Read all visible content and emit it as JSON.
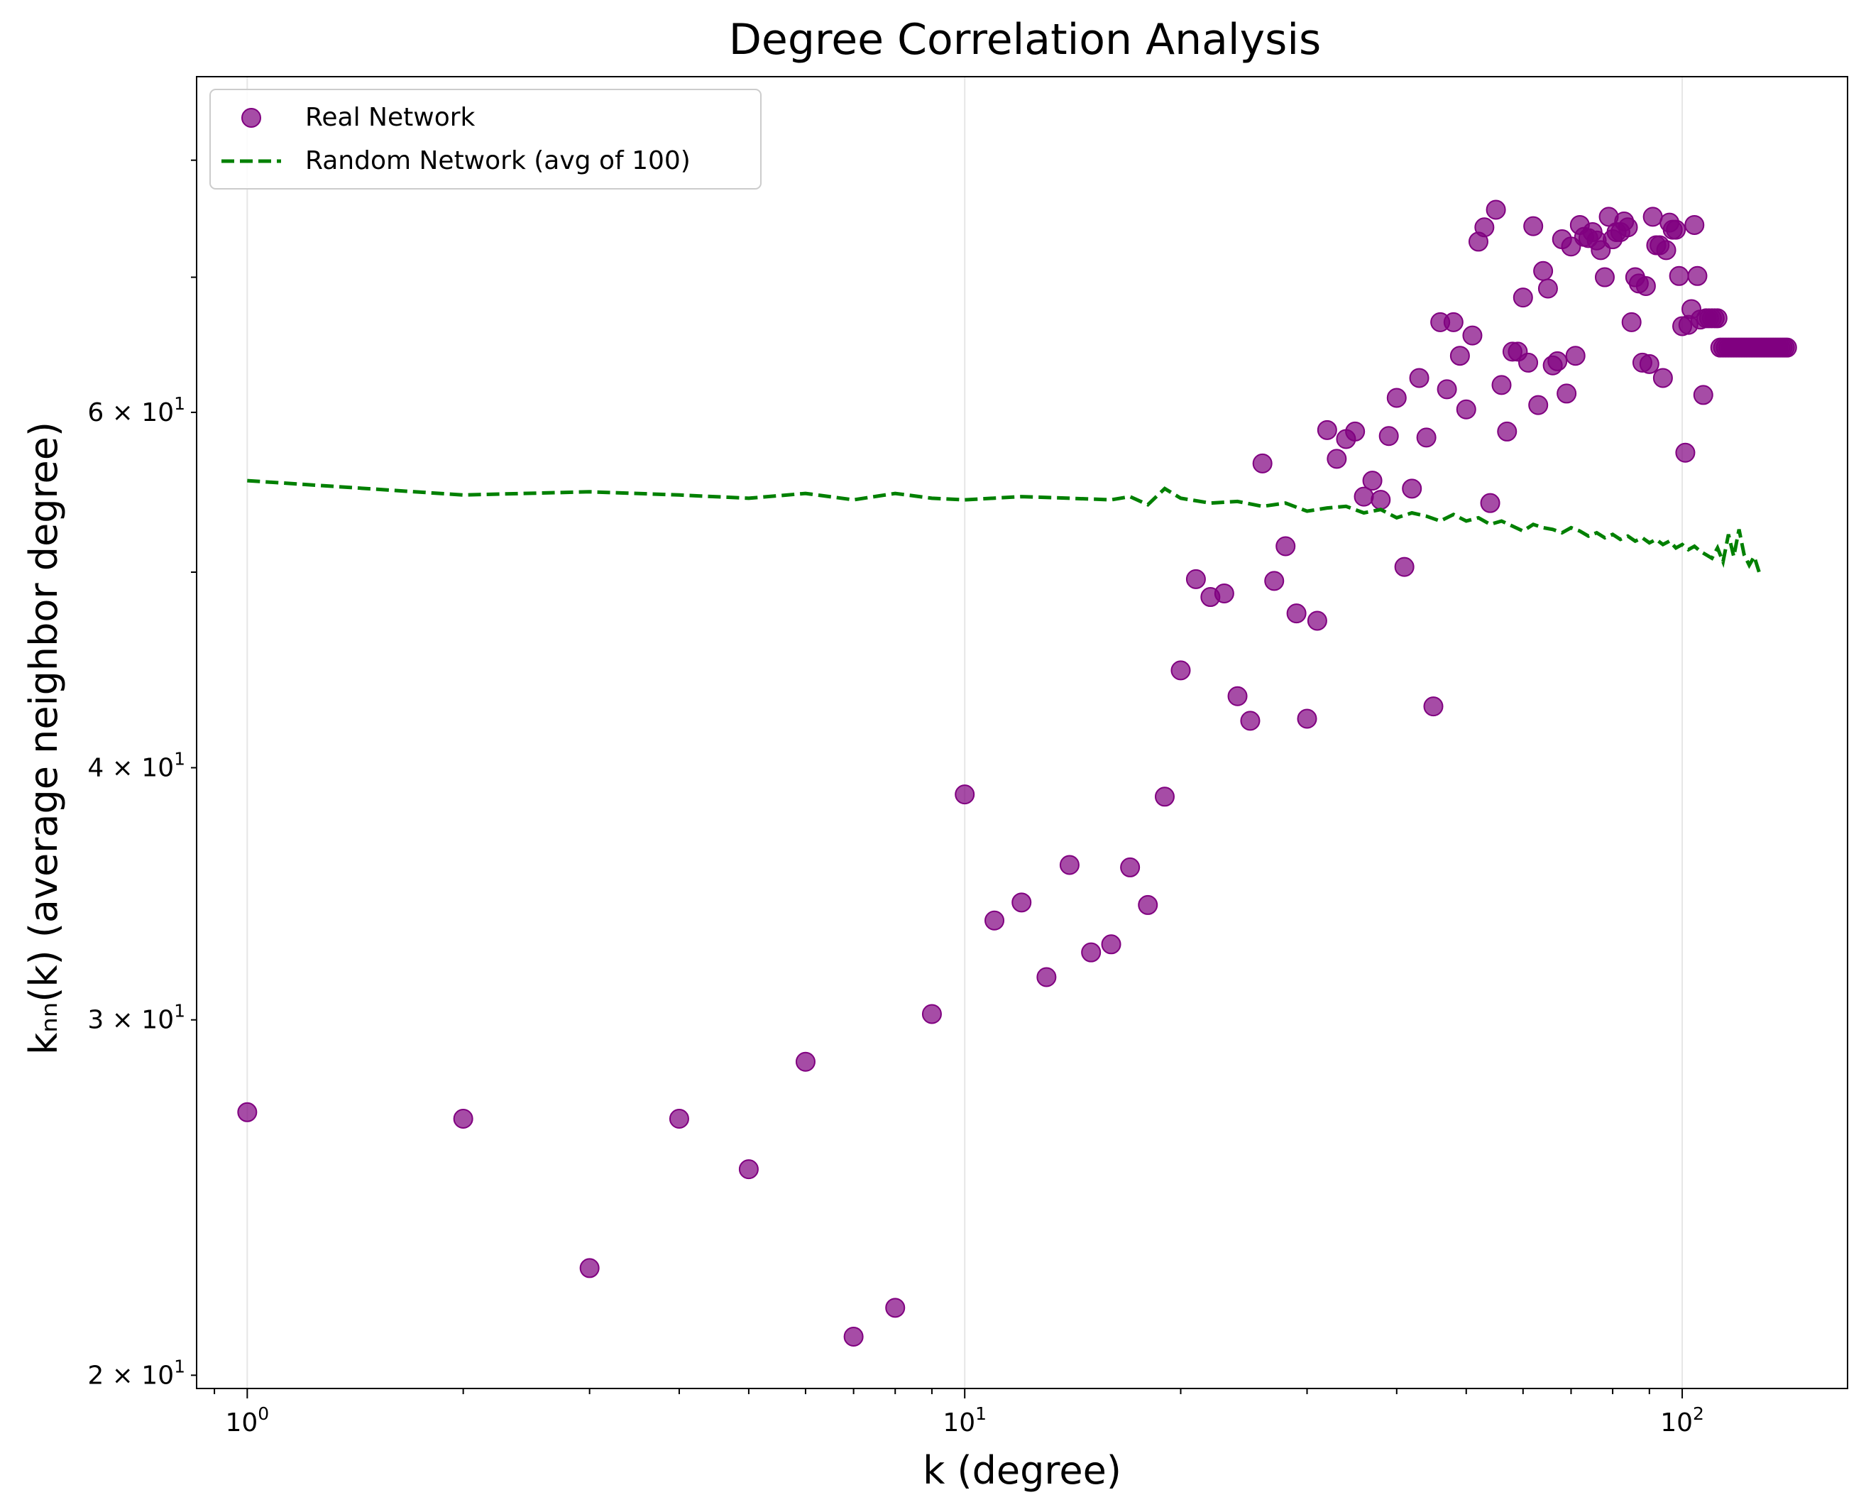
{
  "chart_data": {
    "type": "scatter",
    "title": "Degree Correlation Analysis",
    "xlabel": "k (degree)",
    "ylabel": "kₙₙ(k) (average neighbor degree)",
    "xscale": "log",
    "yscale": "log",
    "xlim": [
      0.85,
      170
    ],
    "ylim": [
      19.7,
      88
    ],
    "grid": "vertical major gridlines",
    "legend_position": "top-left",
    "x_tick_labels": [
      {
        "value": 1,
        "base": "10",
        "exp": "0"
      },
      {
        "value": 10,
        "base": "10",
        "exp": "1"
      },
      {
        "value": 100,
        "base": "10",
        "exp": "2"
      }
    ],
    "y_tick_labels": [
      {
        "value": 20,
        "mant": "2",
        "base": "10",
        "exp": "1"
      },
      {
        "value": 30,
        "mant": "3",
        "base": "10",
        "exp": "1"
      },
      {
        "value": 40,
        "mant": "4",
        "base": "10",
        "exp": "1"
      },
      {
        "value": 60,
        "mant": "6",
        "base": "10",
        "exp": "1"
      }
    ],
    "colors": {
      "real": "#800080",
      "random": "#008000",
      "grid": "#e6e6e6"
    },
    "series": [
      {
        "name": "Real Network",
        "kind": "scatter",
        "x": [
          1,
          2,
          3,
          4,
          5,
          6,
          7,
          8,
          9,
          10,
          11,
          12,
          13,
          14,
          15,
          16,
          17,
          18,
          19,
          20,
          21,
          22,
          23,
          24,
          25,
          26,
          27,
          28,
          29,
          30,
          31,
          32,
          33,
          34,
          35,
          36,
          37,
          38,
          39,
          40,
          41,
          42,
          43,
          44,
          45,
          46,
          47,
          48,
          49,
          50,
          51,
          52,
          53,
          54,
          55,
          56,
          57,
          58,
          59,
          60,
          61,
          62,
          63,
          64,
          65,
          66,
          67,
          68,
          69,
          70,
          71,
          72,
          73,
          74,
          75,
          76,
          77,
          78,
          79,
          80,
          81,
          82,
          83,
          84,
          85,
          86,
          87,
          88,
          89,
          90,
          91,
          92,
          93,
          94,
          95,
          96,
          97,
          98,
          99,
          100,
          101,
          102,
          103,
          104,
          105,
          106,
          107,
          108,
          109,
          110,
          111,
          112,
          113,
          114,
          115,
          116,
          117,
          118,
          119,
          120,
          121,
          122,
          123,
          124,
          125,
          126,
          127,
          128,
          129,
          130,
          131,
          132,
          133,
          134,
          135,
          136,
          137,
          138,
          139,
          140
        ],
        "y": [
          27.0,
          26.8,
          22.6,
          26.8,
          25.3,
          28.6,
          20.9,
          21.6,
          30.2,
          38.8,
          33.6,
          34.3,
          31.5,
          35.8,
          32.4,
          32.7,
          35.7,
          34.2,
          38.7,
          44.7,
          49.6,
          48.6,
          48.8,
          43.4,
          42.2,
          56.6,
          49.5,
          51.5,
          47.7,
          42.3,
          47.3,
          58.8,
          56.9,
          58.2,
          58.7,
          54.5,
          55.5,
          54.3,
          58.4,
          61.0,
          50.3,
          55.0,
          62.4,
          58.3,
          42.9,
          66.5,
          61.6,
          66.5,
          64.0,
          60.2,
          65.5,
          72.9,
          74.1,
          54.1,
          75.6,
          61.9,
          58.7,
          64.3,
          64.3,
          68.4,
          63.5,
          74.2,
          60.5,
          70.5,
          69.1,
          63.3,
          63.6,
          73.1,
          61.3,
          72.5,
          64.0,
          74.3,
          73.3,
          73.2,
          73.7,
          73.0,
          72.2,
          70.0,
          75.0,
          73.1,
          73.7,
          73.7,
          74.6,
          74.1,
          66.5,
          70.0,
          69.5,
          63.5,
          69.3,
          63.4,
          75.0,
          72.6,
          72.6,
          62.4,
          72.2,
          74.5,
          73.9,
          73.9,
          70.1,
          66.2,
          57.3,
          66.3,
          67.5,
          74.3,
          70.1,
          66.7,
          61.2,
          66.8,
          66.8,
          66.8,
          66.8,
          66.8,
          64.6,
          64.6,
          64.6,
          64.6,
          64.6,
          64.6,
          64.6,
          64.6,
          64.6,
          64.6,
          64.6,
          64.6,
          64.6,
          64.6,
          64.6,
          64.6,
          64.6,
          64.6,
          64.6,
          64.6,
          64.6,
          64.6,
          64.6,
          64.6,
          64.6,
          64.6,
          64.6,
          64.6
        ],
        "note_x": "points read from the figure",
        "color": "#800080"
      },
      {
        "name": "Random Network (avg of 100)",
        "kind": "line",
        "style": "dashed",
        "x": [
          1,
          2,
          3,
          4,
          5,
          6,
          7,
          8,
          9,
          10,
          12,
          14,
          16,
          17,
          18,
          19,
          20,
          22,
          24,
          26,
          28,
          30,
          32,
          34,
          36,
          38,
          40,
          42,
          44,
          46,
          48,
          50,
          52,
          54,
          56,
          58,
          60,
          62,
          64,
          66,
          68,
          70,
          72,
          74,
          76,
          78,
          80,
          82,
          84,
          86,
          88,
          90,
          92,
          94,
          96,
          98,
          100,
          102,
          104,
          106,
          108,
          110,
          112,
          114,
          116,
          118,
          120,
          122,
          124,
          126,
          128
        ],
        "y": [
          55.5,
          54.6,
          54.8,
          54.6,
          54.4,
          54.7,
          54.3,
          54.7,
          54.4,
          54.3,
          54.5,
          54.4,
          54.3,
          54.5,
          54.0,
          55.0,
          54.4,
          54.1,
          54.2,
          53.9,
          54.1,
          53.6,
          53.8,
          53.9,
          53.5,
          53.7,
          53.2,
          53.5,
          53.3,
          53.0,
          53.4,
          53.0,
          53.2,
          52.8,
          53.0,
          52.7,
          52.4,
          52.8,
          52.6,
          52.5,
          52.3,
          52.6,
          52.4,
          52.1,
          52.3,
          52.0,
          52.2,
          51.9,
          52.1,
          51.8,
          52.0,
          51.7,
          51.9,
          51.6,
          51.8,
          51.4,
          51.6,
          51.3,
          51.5,
          51.2,
          51.0,
          50.8,
          51.4,
          50.6,
          52.2,
          50.9,
          52.5,
          51.0,
          50.4,
          50.9,
          50.0
        ],
        "color": "#008000"
      }
    ]
  }
}
